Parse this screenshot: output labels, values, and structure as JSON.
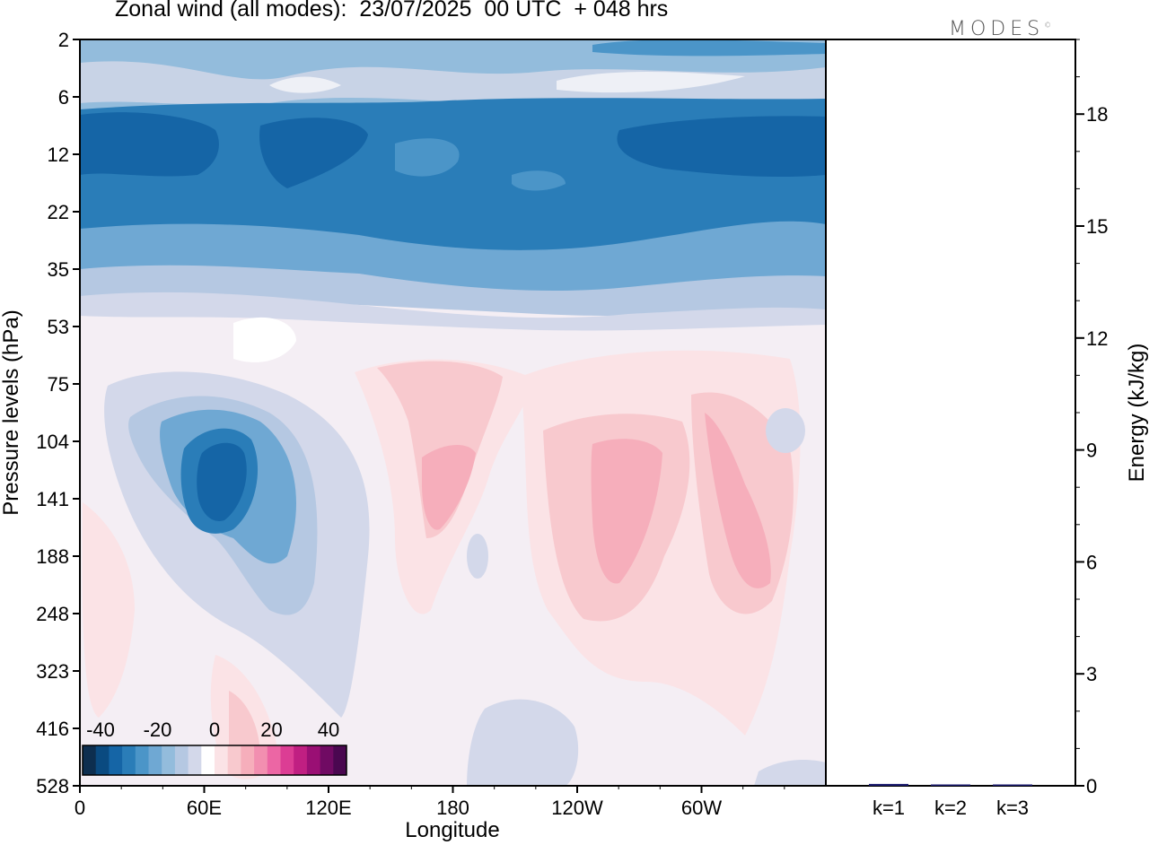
{
  "title": "Zonal wind (all modes):  23/07/2025  00 UTC  + 048 hrs",
  "logo": "MODES",
  "logo_mark": "©",
  "chart_data": [
    {
      "type": "heatmap",
      "xlabel": "Longitude",
      "ylabel": "Pressure levels (hPa)",
      "x_ticks": [
        "0",
        "60E",
        "120E",
        "180",
        "120W",
        "60W"
      ],
      "y_ticks": [
        "2",
        "6",
        "12",
        "22",
        "35",
        "53",
        "75",
        "104",
        "141",
        "188",
        "248",
        "323",
        "416",
        "528"
      ],
      "colorbar": {
        "tick_labels": [
          "-40",
          "-20",
          "0",
          "20",
          "40"
        ],
        "colors": [
          "#0d2e4f",
          "#0a4a80",
          "#1565a6",
          "#2a7db8",
          "#4b95c8",
          "#6fa8d3",
          "#93bcdc",
          "#b5c8e2",
          "#d3d8ea",
          "#ffffff",
          "#fbe3e6",
          "#f8c9ce",
          "#f6aebb",
          "#f28fb0",
          "#ec66a4",
          "#dc3d94",
          "#c01f82",
          "#9a0f74",
          "#700a63",
          "#4a0750"
        ]
      },
      "fields": [
        {
          "name": "strat_jet_upper",
          "lon_range": [
            0,
            360
          ],
          "p_range": [
            6,
            12
          ],
          "value": -20
        },
        {
          "name": "strat_jet_core",
          "lon_range": [
            0,
            360
          ],
          "p_range": [
            10,
            22
          ],
          "value": -25
        },
        {
          "name": "low_strat_westerly",
          "lon_range": [
            150,
            185
          ],
          "p_range": [
            70,
            230
          ],
          "value": 10
        },
        {
          "name": "trop_easterly_core",
          "lon_range": [
            45,
            85
          ],
          "p_range": [
            90,
            200
          ],
          "value": -30
        },
        {
          "name": "trop_westerly_a",
          "lon_range": [
            225,
            265
          ],
          "p_range": [
            100,
            250
          ],
          "value": 12
        },
        {
          "name": "trop_westerly_b",
          "lon_range": [
            290,
            335
          ],
          "p_range": [
            100,
            240
          ],
          "value": 12
        }
      ]
    },
    {
      "type": "bar",
      "categories": [
        "k=1",
        "k=2",
        "k=3"
      ],
      "values": [
        0.05,
        0.02,
        0.0
      ],
      "ylabel": "Energy (kJ/kg)",
      "y_ticks": [
        "0",
        "3",
        "6",
        "9",
        "12",
        "15",
        "18"
      ],
      "ylim": [
        0,
        20
      ],
      "bar_color": "#1a1a6e"
    }
  ]
}
